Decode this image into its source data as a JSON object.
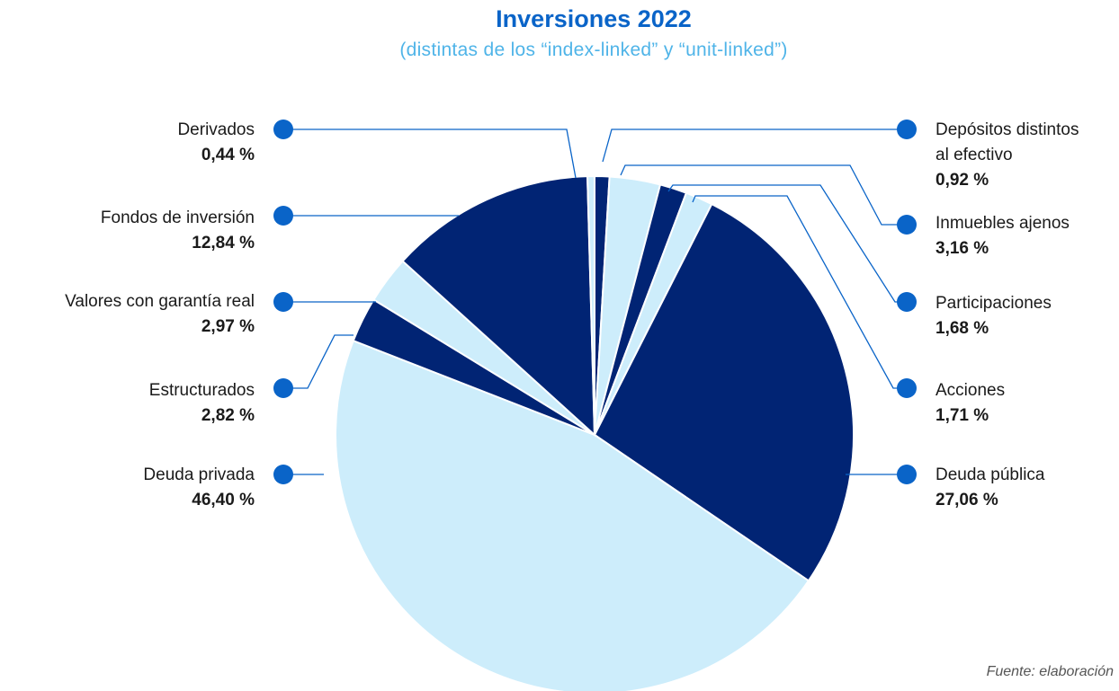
{
  "title": "Inversiones 2022",
  "subtitle": "(distintas de los “index-linked” y “unit-linked”)",
  "source": "Fuente: elaboración",
  "colors": {
    "dark": "#012474",
    "light": "#cdedfb",
    "marker": "#0a64c8",
    "line": "#0a64c8",
    "title": "#0a64c8",
    "subtitle": "#4fb4e8"
  },
  "chart_data": {
    "type": "pie",
    "title": "Inversiones 2022",
    "subtitle": "(distintas de los “index-linked” y “unit-linked”)",
    "slices": [
      {
        "label": "Depósitos distintos al efectivo",
        "value": 0.92,
        "display": "0,92 %",
        "color": "dark"
      },
      {
        "label": "Inmuebles ajenos",
        "value": 3.16,
        "display": "3,16 %",
        "color": "light"
      },
      {
        "label": "Participaciones",
        "value": 1.68,
        "display": "1,68 %",
        "color": "dark"
      },
      {
        "label": "Acciones",
        "value": 1.71,
        "display": "1,71 %",
        "color": "light"
      },
      {
        "label": "Deuda pública",
        "value": 27.06,
        "display": "27,06 %",
        "color": "dark"
      },
      {
        "label": "Deuda privada",
        "value": 46.4,
        "display": "46,40 %",
        "color": "light"
      },
      {
        "label": "Estructurados",
        "value": 2.82,
        "display": "2,82 %",
        "color": "dark"
      },
      {
        "label": "Valores con garantía real",
        "value": 2.97,
        "display": "2,97 %",
        "color": "light"
      },
      {
        "label": "Fondos de inversión",
        "value": 12.84,
        "display": "12,84 %",
        "color": "dark"
      },
      {
        "label": "Derivados",
        "value": 0.44,
        "display": "0,44 %",
        "color": "light"
      }
    ]
  },
  "labels": {
    "depositos": {
      "name1": "Depósitos distintos",
      "name2": "al efectivo",
      "value": "0,92 %"
    },
    "inmuebles": {
      "name": "Inmuebles ajenos",
      "value": "3,16 %"
    },
    "participaciones": {
      "name": "Participaciones",
      "value": "1,68 %"
    },
    "acciones": {
      "name": "Acciones",
      "value": "1,71 %"
    },
    "deuda_publica": {
      "name": "Deuda pública",
      "value": "27,06 %"
    },
    "derivados": {
      "name": "Derivados",
      "value": "0,44 %"
    },
    "fondos": {
      "name": "Fondos de inversión",
      "value": "12,84 %"
    },
    "valores": {
      "name": "Valores con garantía real",
      "value": "2,97 %"
    },
    "estructurados": {
      "name": "Estructurados",
      "value": "2,82 %"
    },
    "deuda_privada": {
      "name": "Deuda privada",
      "value": "46,40 %"
    }
  }
}
